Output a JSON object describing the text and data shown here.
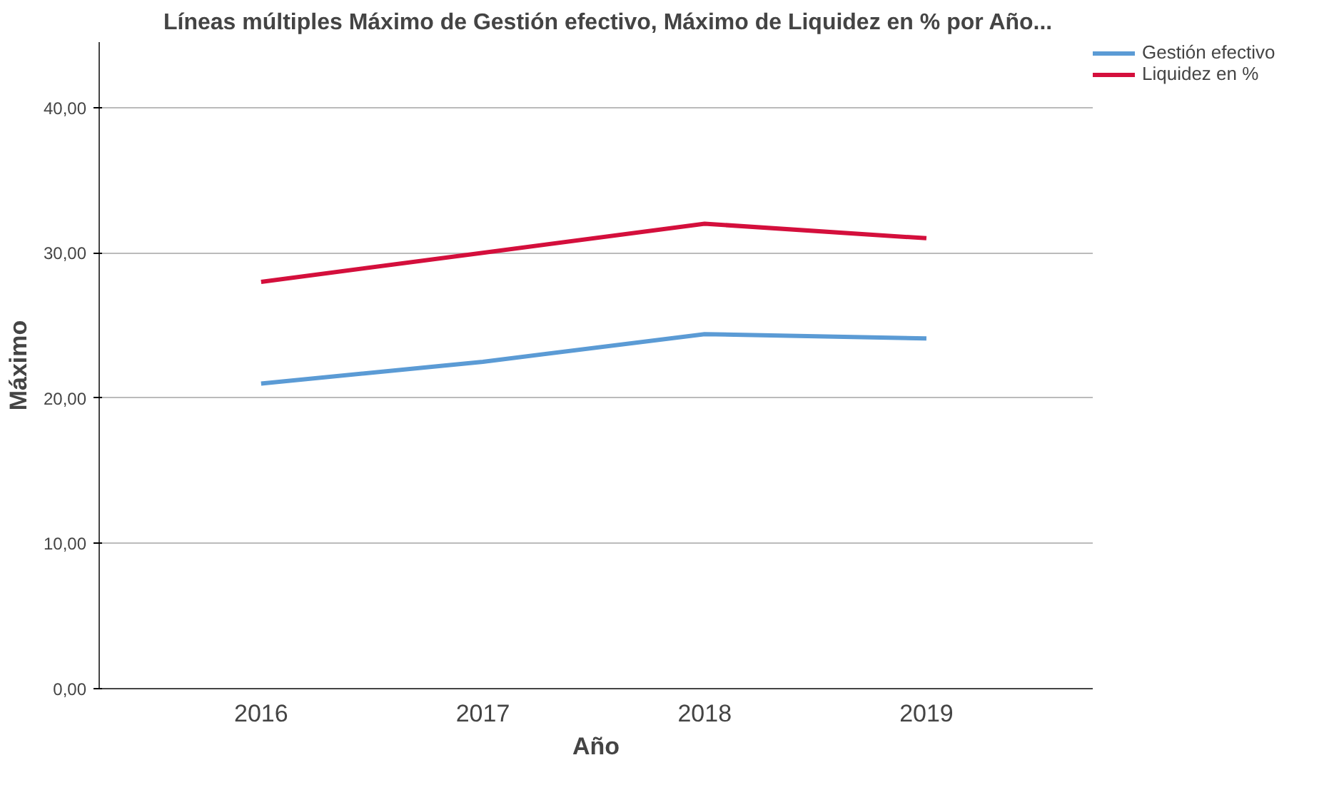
{
  "chart_data": {
    "type": "line",
    "title": "Líneas múltiples Máximo de Gestión efectivo, Máximo de Liquidez en % por Año...",
    "xlabel": "Año",
    "ylabel": "Máximo",
    "categories": [
      "2016",
      "2017",
      "2018",
      "2019"
    ],
    "series": [
      {
        "name": "Gestión efectivo",
        "color": "#5b9bd5",
        "values": [
          21.0,
          22.5,
          24.4,
          24.1
        ]
      },
      {
        "name": "Liquidez en %",
        "color": "#d40f3c",
        "values": [
          28.0,
          30.0,
          32.0,
          31.0
        ]
      }
    ],
    "ylim": [
      0,
      44.5
    ],
    "yticks": [
      {
        "value": 0,
        "label": "0,00"
      },
      {
        "value": 10,
        "label": "10,00"
      },
      {
        "value": 20,
        "label": "20,00"
      },
      {
        "value": 30,
        "label": "30,00"
      },
      {
        "value": 40,
        "label": "40,00"
      }
    ],
    "grid": "y",
    "legend": "top right",
    "marker": "none",
    "line_style": "solid"
  }
}
